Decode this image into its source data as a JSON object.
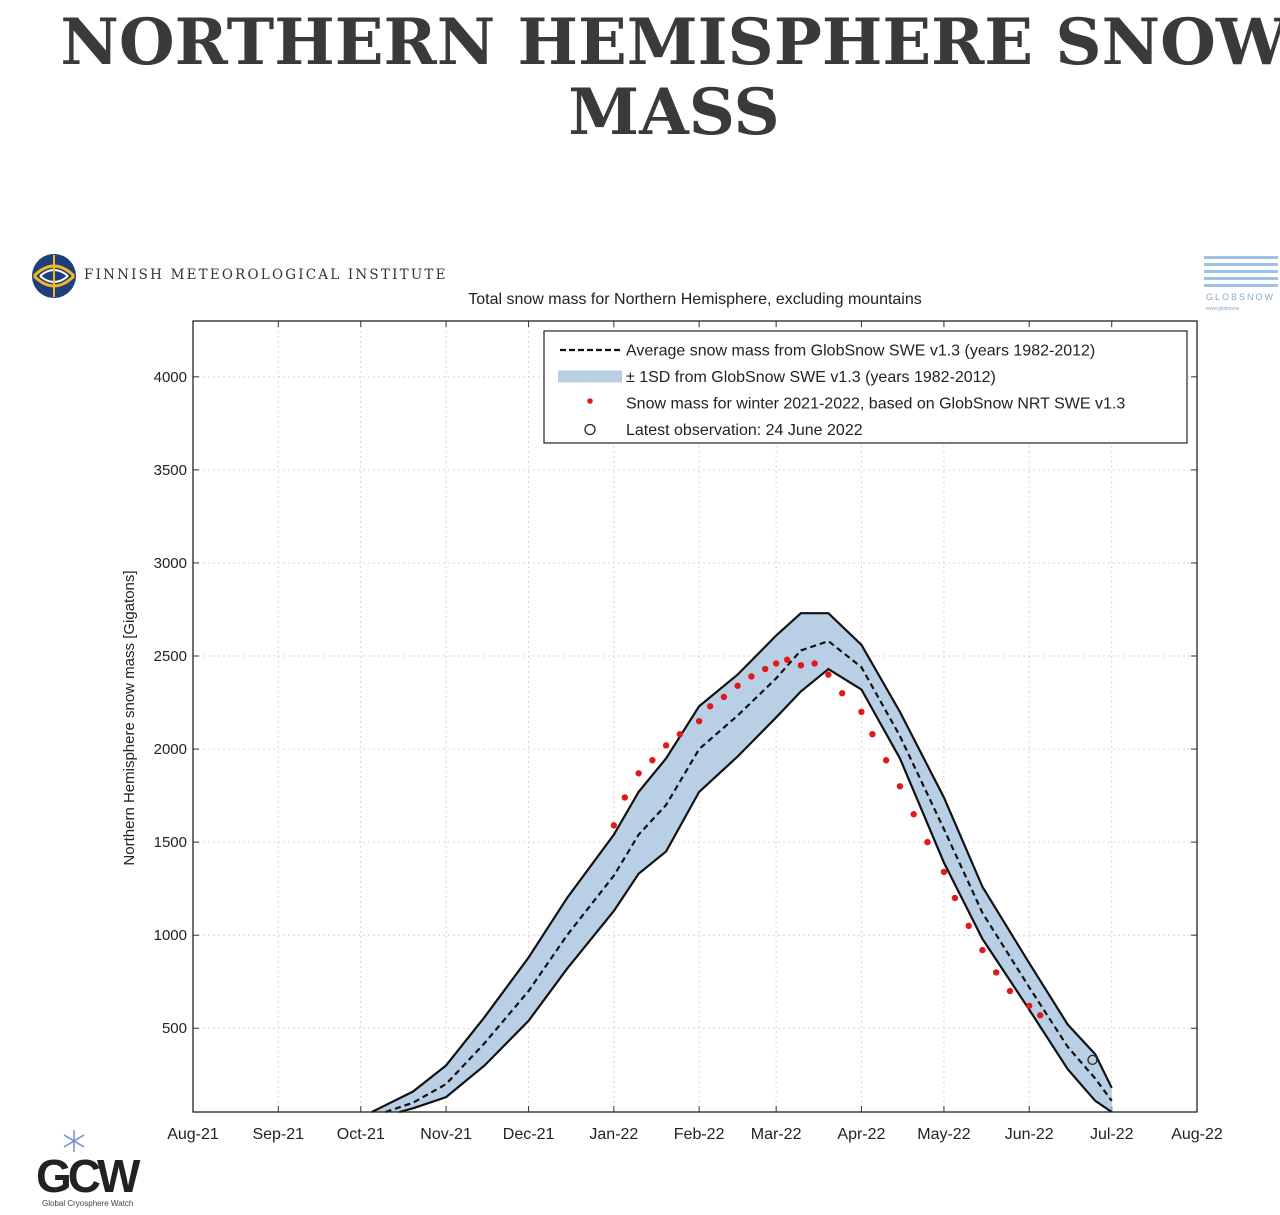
{
  "headline": "NORTHERN HEMISPHERE SNOW MASS",
  "logos": {
    "fmi_name": "FINNISH METEOROLOGICAL INSTITUTE",
    "globsnow_text": "GLOBSNOW",
    "globsnow_url": "www.globsnow",
    "gcw_letters": "GCW",
    "gcw_caption": "Global Cryosphere Watch"
  },
  "colors": {
    "band": "#b9cfe6",
    "band_edge": "#111111",
    "average": "#111111",
    "observed": "#e0191b"
  },
  "chart_data": {
    "type": "line",
    "title": "Total snow mass for Northern Hemisphere, excluding mountains",
    "ylabel": "Northern Hemisphere snow mass [Gigatons]",
    "xlabel": "",
    "ylim": [
      50,
      4300
    ],
    "grid": true,
    "legend_position": "top-right",
    "x_ticks": [
      "Aug-21",
      "Sep-21",
      "Oct-21",
      "Nov-21",
      "Dec-21",
      "Jan-22",
      "Feb-22",
      "Mar-22",
      "Apr-22",
      "May-22",
      "Jun-22",
      "Jul-22",
      "Aug-22"
    ],
    "y_ticks": [
      500,
      1000,
      1500,
      2000,
      2500,
      3000,
      3500,
      4000
    ],
    "legend": [
      {
        "label": "Average snow mass from GlobSnow SWE v1.3 (years 1982-2012)",
        "style": "dashed"
      },
      {
        "label": "± 1SD from GlobSnow SWE v1.3 (years 1982-2012)",
        "style": "band"
      },
      {
        "label": "Snow mass for winter 2021-2022, based on GlobSnow NRT SWE v1.3",
        "style": "dots"
      },
      {
        "label": "Latest observation: 24 June 2022",
        "style": "circle"
      }
    ],
    "series": [
      {
        "name": "Average snow mass from GlobSnow SWE v1.3 (years 1982-2012)",
        "x": [
          "2021-10-10",
          "2021-10-20",
          "2021-11-01",
          "2021-11-15",
          "2021-12-01",
          "2021-12-15",
          "2022-01-01",
          "2022-01-10",
          "2022-01-20",
          "2022-02-01",
          "2022-02-15",
          "2022-03-01",
          "2022-03-10",
          "2022-03-20",
          "2022-04-01",
          "2022-04-15",
          "2022-05-01",
          "2022-05-15",
          "2022-06-01",
          "2022-06-15",
          "2022-06-25",
          "2022-07-01"
        ],
        "values": [
          50,
          100,
          200,
          420,
          700,
          1000,
          1320,
          1540,
          1700,
          2000,
          2180,
          2380,
          2530,
          2580,
          2440,
          2070,
          1570,
          1120,
          720,
          400,
          230,
          110
        ]
      },
      {
        "name": "± 1SD upper",
        "x": [
          "2021-10-05",
          "2021-10-20",
          "2021-11-01",
          "2021-11-15",
          "2021-12-01",
          "2021-12-15",
          "2022-01-01",
          "2022-01-10",
          "2022-01-20",
          "2022-02-01",
          "2022-02-15",
          "2022-03-01",
          "2022-03-10",
          "2022-03-20",
          "2022-04-01",
          "2022-04-15",
          "2022-05-01",
          "2022-05-15",
          "2022-06-01",
          "2022-06-15",
          "2022-06-25",
          "2022-07-01"
        ],
        "values": [
          50,
          160,
          300,
          560,
          880,
          1200,
          1540,
          1770,
          1950,
          2230,
          2400,
          2610,
          2730,
          2730,
          2560,
          2200,
          1740,
          1260,
          850,
          520,
          360,
          180
        ]
      },
      {
        "name": "± 1SD lower",
        "x": [
          "2021-10-15",
          "2021-10-20",
          "2021-11-01",
          "2021-11-15",
          "2021-12-01",
          "2021-12-15",
          "2022-01-01",
          "2022-01-10",
          "2022-01-20",
          "2022-02-01",
          "2022-02-15",
          "2022-03-01",
          "2022-03-10",
          "2022-03-20",
          "2022-04-01",
          "2022-04-15",
          "2022-05-01",
          "2022-05-15",
          "2022-06-01",
          "2022-06-15",
          "2022-06-25",
          "2022-07-01"
        ],
        "values": [
          50,
          70,
          130,
          300,
          540,
          820,
          1130,
          1330,
          1450,
          1770,
          1960,
          2170,
          2310,
          2430,
          2320,
          1950,
          1390,
          980,
          600,
          280,
          110,
          50
        ]
      },
      {
        "name": "Snow mass for winter 2021-2022, based on GlobSnow NRT SWE v1.3",
        "x": [
          "2022-01-01",
          "2022-01-05",
          "2022-01-10",
          "2022-01-15",
          "2022-01-20",
          "2022-01-25",
          "2022-02-01",
          "2022-02-05",
          "2022-02-10",
          "2022-02-15",
          "2022-02-20",
          "2022-02-25",
          "2022-03-01",
          "2022-03-05",
          "2022-03-10",
          "2022-03-15",
          "2022-03-20",
          "2022-03-25",
          "2022-04-01",
          "2022-04-05",
          "2022-04-10",
          "2022-04-15",
          "2022-04-20",
          "2022-04-25",
          "2022-05-01",
          "2022-05-05",
          "2022-05-10",
          "2022-05-15",
          "2022-05-20",
          "2022-05-25",
          "2022-06-01",
          "2022-06-05"
        ],
        "values": [
          1590,
          1740,
          1870,
          1940,
          2020,
          2080,
          2150,
          2230,
          2280,
          2340,
          2390,
          2430,
          2460,
          2480,
          2450,
          2460,
          2400,
          2300,
          2200,
          2080,
          1940,
          1800,
          1650,
          1500,
          1340,
          1200,
          1050,
          920,
          800,
          700,
          620,
          570
        ]
      }
    ],
    "latest_observation": {
      "x": "2022-06-24",
      "value": 330
    }
  }
}
